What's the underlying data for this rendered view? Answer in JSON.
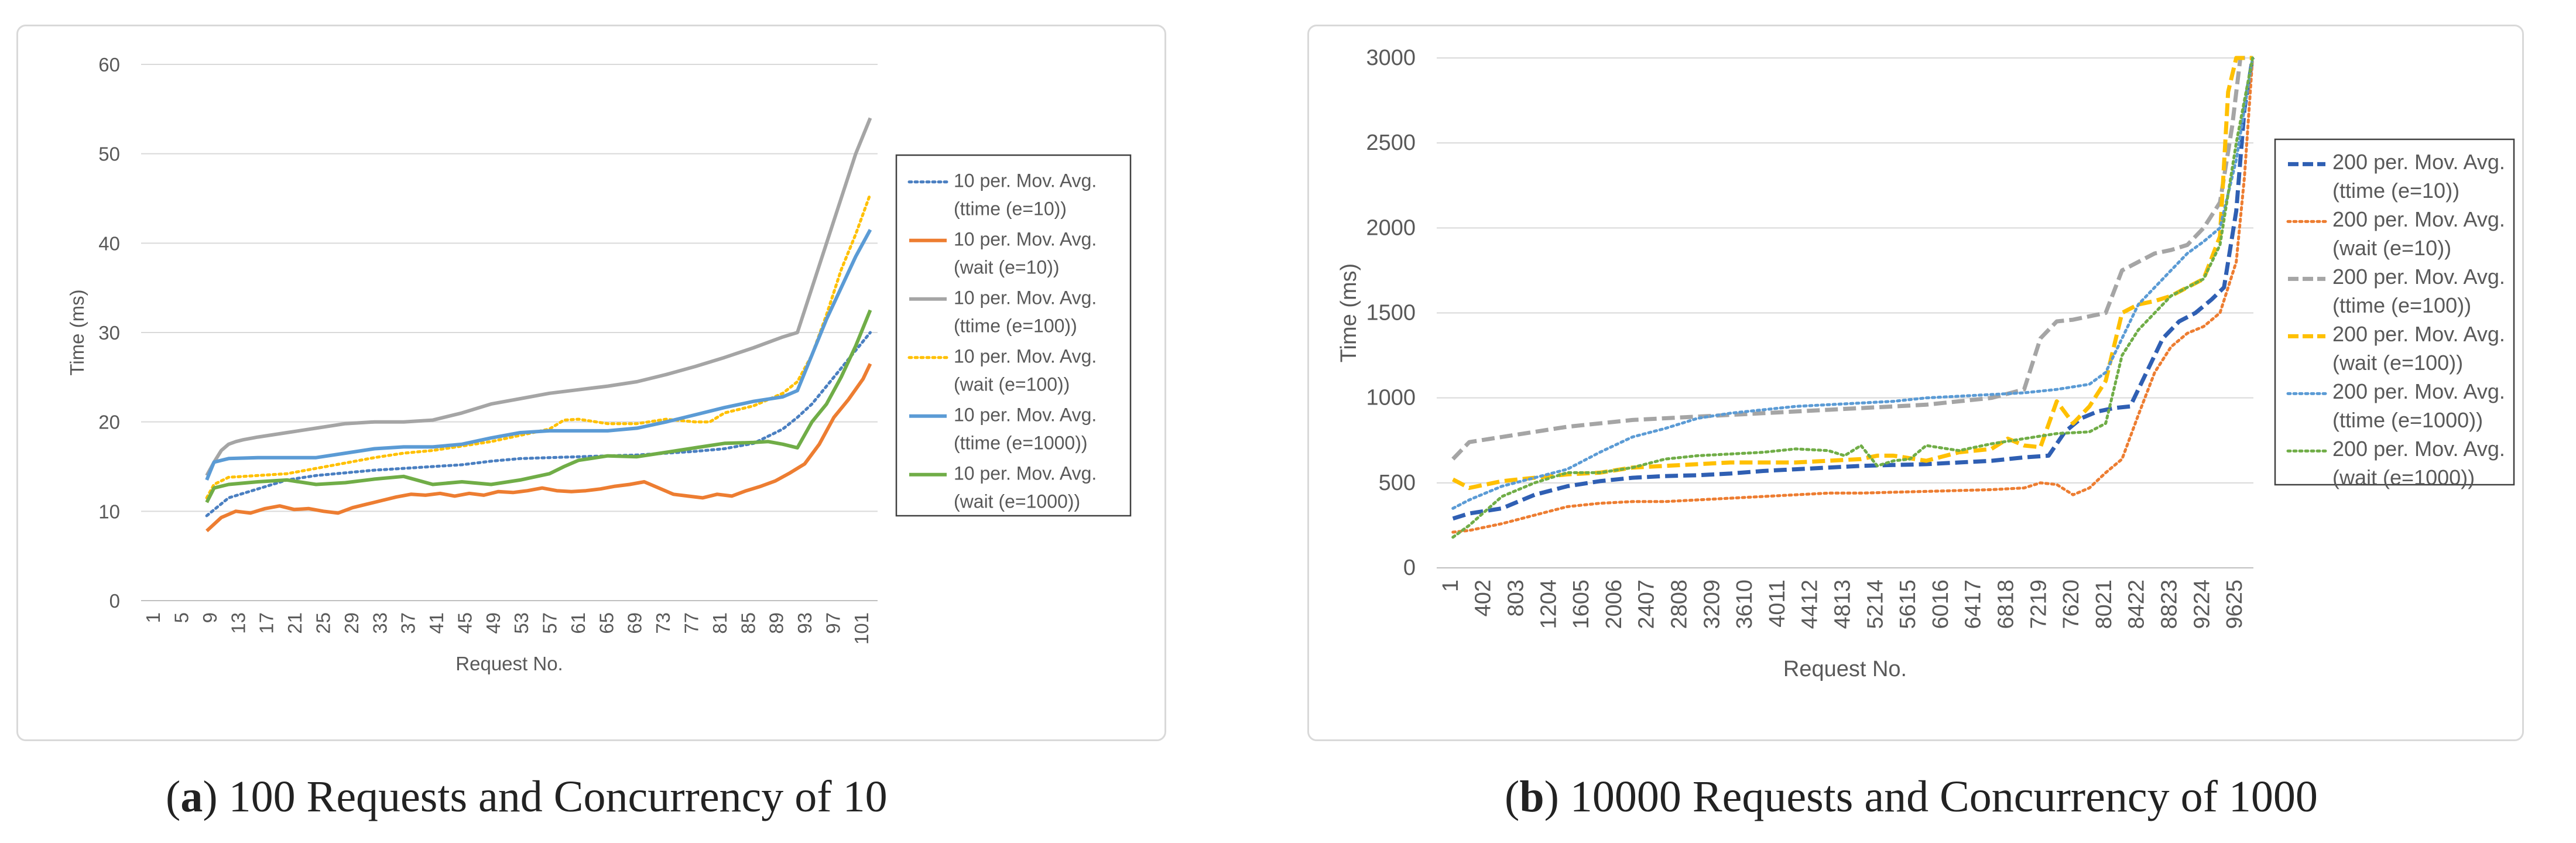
{
  "chart_data": [
    {
      "type": "line",
      "panel_label": "a",
      "caption": "100 Requests and Concurrency of 10",
      "title": "",
      "xlabel": "Request No.",
      "ylabel": "Time (ms)",
      "x_ticks": [
        "1",
        "5",
        "9",
        "13",
        "17",
        "21",
        "25",
        "29",
        "33",
        "37",
        "41",
        "45",
        "49",
        "53",
        "57",
        "61",
        "65",
        "69",
        "73",
        "77",
        "81",
        "85",
        "89",
        "93",
        "97",
        "101"
      ],
      "x_range": [
        1,
        102
      ],
      "ylim": [
        0,
        60
      ],
      "y_ticks": [
        0,
        10,
        20,
        30,
        40,
        50,
        60
      ],
      "grid": true,
      "legend_position": "right",
      "series": [
        {
          "name": "10 per. Mov. Avg. (ttime (e=10))",
          "color": "#4a7fc1",
          "style": "dotted",
          "width": 5,
          "x": [
            10,
            13,
            17,
            21,
            25,
            29,
            33,
            37,
            41,
            45,
            49,
            53,
            57,
            61,
            65,
            69,
            73,
            77,
            81,
            85,
            89,
            91,
            93,
            95,
            97,
            99,
            101
          ],
          "y": [
            9.5,
            11.5,
            12.5,
            13.5,
            14,
            14.3,
            14.6,
            14.8,
            15,
            15.2,
            15.6,
            15.9,
            16,
            16.1,
            16.2,
            16.3,
            16.5,
            16.7,
            17,
            17.6,
            19.2,
            20.5,
            22,
            24,
            26,
            28,
            30
          ]
        },
        {
          "name": "10 per. Mov. Avg. (wait (e=10))",
          "color": "#ed7d31",
          "style": "solid",
          "width": 6,
          "x": [
            10,
            12,
            14,
            16,
            18,
            20,
            22,
            24,
            26,
            28,
            30,
            32,
            34,
            36,
            38,
            40,
            42,
            44,
            46,
            48,
            50,
            52,
            54,
            56,
            58,
            60,
            62,
            64,
            66,
            68,
            70,
            72,
            74,
            76,
            78,
            80,
            82,
            84,
            86,
            88,
            90,
            92,
            94,
            96,
            98,
            100,
            101
          ],
          "y": [
            7.8,
            9.3,
            10,
            9.8,
            10.3,
            10.6,
            10.2,
            10.3,
            10,
            9.8,
            10.4,
            10.8,
            11.2,
            11.6,
            11.9,
            11.8,
            12,
            11.7,
            12,
            11.8,
            12.2,
            12.1,
            12.3,
            12.6,
            12.3,
            12.2,
            12.3,
            12.5,
            12.8,
            13,
            13.3,
            12.6,
            11.9,
            11.7,
            11.5,
            11.9,
            11.7,
            12.3,
            12.8,
            13.4,
            14.3,
            15.3,
            17.5,
            20.5,
            22.5,
            24.8,
            26.5
          ]
        },
        {
          "name": "10 per. Mov. Avg. (ttime (e=100))",
          "color": "#a5a5a5",
          "style": "solid",
          "width": 6,
          "x": [
            10,
            11,
            12,
            13,
            14,
            15,
            17,
            21,
            25,
            29,
            33,
            37,
            41,
            45,
            49,
            53,
            57,
            61,
            65,
            69,
            73,
            77,
            81,
            85,
            89,
            91,
            93,
            95,
            97,
            99,
            101
          ],
          "y": [
            14,
            15.5,
            16.8,
            17.5,
            17.8,
            18,
            18.3,
            18.8,
            19.3,
            19.8,
            20,
            20,
            20.2,
            21,
            22,
            22.6,
            23.2,
            23.6,
            24,
            24.5,
            25.3,
            26.2,
            27.2,
            28.3,
            29.5,
            30,
            35,
            40,
            45,
            50,
            54
          ]
        },
        {
          "name": "10 per. Mov. Avg. (wait (e=100))",
          "color": "#ffc000",
          "style": "dotted",
          "width": 5,
          "x": [
            10,
            11,
            13,
            17,
            21,
            25,
            29,
            33,
            37,
            41,
            45,
            49,
            53,
            57,
            59,
            61,
            65,
            69,
            73,
            77,
            79,
            81,
            85,
            89,
            91,
            93,
            95,
            97,
            99,
            101
          ],
          "y": [
            11.5,
            13,
            13.8,
            14,
            14.2,
            14.8,
            15.4,
            16,
            16.5,
            16.8,
            17.3,
            17.8,
            18.5,
            19.2,
            20.2,
            20.3,
            19.8,
            19.8,
            20.3,
            20,
            20,
            21,
            21.8,
            23.2,
            24.5,
            27.5,
            32,
            37,
            41,
            45.5
          ]
        },
        {
          "name": "10 per. Mov. Avg. (ttime (e=1000))",
          "color": "#5b9bd5",
          "style": "solid",
          "width": 6,
          "x": [
            10,
            11,
            13,
            17,
            21,
            25,
            29,
            33,
            37,
            41,
            45,
            49,
            53,
            57,
            61,
            65,
            69,
            73,
            77,
            81,
            85,
            89,
            91,
            93,
            95,
            97,
            99,
            101
          ],
          "y": [
            13.5,
            15.5,
            15.9,
            16,
            16,
            16,
            16.5,
            17,
            17.2,
            17.2,
            17.5,
            18.2,
            18.8,
            19,
            19,
            19,
            19.3,
            20,
            20.8,
            21.6,
            22.3,
            22.8,
            23.5,
            27.5,
            31.5,
            35,
            38.5,
            41.5
          ]
        },
        {
          "name": "10 per. Mov. Avg. (wait (e=1000))",
          "color": "#70ad47",
          "style": "solid",
          "width": 6,
          "x": [
            10,
            11,
            13,
            17,
            21,
            25,
            29,
            33,
            37,
            41,
            45,
            49,
            53,
            57,
            59,
            61,
            65,
            69,
            73,
            77,
            81,
            85,
            87,
            89,
            91,
            93,
            95,
            97,
            99,
            101
          ],
          "y": [
            11,
            12.6,
            13,
            13.3,
            13.5,
            13,
            13.2,
            13.6,
            13.9,
            13,
            13.3,
            13,
            13.5,
            14.2,
            15,
            15.7,
            16.2,
            16.1,
            16.6,
            17.1,
            17.6,
            17.7,
            17.8,
            17.5,
            17.1,
            20,
            22,
            25,
            28.5,
            32.5
          ]
        }
      ]
    },
    {
      "type": "line",
      "panel_label": "b",
      "caption": "10000 Requests and Concurrency of 1000",
      "title": "",
      "xlabel": "Request No.",
      "ylabel": "Time (ms)",
      "x_ticks": [
        "1",
        "402",
        "803",
        "1204",
        "1605",
        "2006",
        "2407",
        "2808",
        "3209",
        "3610",
        "4011",
        "4412",
        "4813",
        "5214",
        "5615",
        "6016",
        "6417",
        "6818",
        "7219",
        "7620",
        "8021",
        "8422",
        "8823",
        "9224",
        "9625"
      ],
      "x_range": [
        1,
        10010
      ],
      "ylim": [
        0,
        3000
      ],
      "y_ticks": [
        0,
        500,
        1000,
        1500,
        2000,
        2500,
        3000
      ],
      "grid": true,
      "legend_position": "right",
      "series": [
        {
          "name": "200 per. Mov. Avg. (ttime (e=10))",
          "color": "#2f5fb3",
          "style": "dashed",
          "width": 7,
          "x": [
            200,
            400,
            800,
            1200,
            1600,
            2000,
            2400,
            2800,
            3200,
            3600,
            4000,
            4400,
            4800,
            5200,
            5600,
            6000,
            6400,
            6800,
            7200,
            7500,
            7700,
            7900,
            8100,
            8300,
            8500,
            8700,
            8900,
            9100,
            9300,
            9500,
            9650,
            9800,
            9900,
            10000
          ],
          "y": [
            290,
            320,
            350,
            430,
            480,
            510,
            530,
            540,
            545,
            555,
            570,
            580,
            590,
            600,
            605,
            610,
            620,
            630,
            650,
            660,
            800,
            880,
            920,
            940,
            950,
            1150,
            1350,
            1450,
            1500,
            1580,
            1650,
            2100,
            2700,
            3000
          ]
        },
        {
          "name": "200 per. Mov. Avg. (wait (e=10))",
          "color": "#ed7d31",
          "style": "dotted",
          "width": 5,
          "x": [
            200,
            400,
            800,
            1200,
            1600,
            2000,
            2400,
            2800,
            3200,
            3600,
            4000,
            4400,
            4800,
            5200,
            5600,
            6000,
            6400,
            6800,
            7200,
            7400,
            7600,
            7800,
            8000,
            8200,
            8400,
            8600,
            8800,
            9000,
            9200,
            9400,
            9600,
            9800,
            9900,
            10000
          ],
          "y": [
            210,
            220,
            260,
            310,
            360,
            380,
            390,
            390,
            400,
            410,
            420,
            430,
            440,
            440,
            445,
            450,
            455,
            460,
            470,
            500,
            490,
            430,
            470,
            560,
            640,
            900,
            1150,
            1300,
            1380,
            1420,
            1500,
            1800,
            2300,
            3000
          ]
        },
        {
          "name": "200 per. Mov. Avg. (ttime (e=100))",
          "color": "#a5a5a5",
          "style": "dashed",
          "width": 7,
          "x": [
            200,
            400,
            800,
            1200,
            1600,
            2000,
            2400,
            2800,
            3200,
            3600,
            4000,
            4400,
            4800,
            5200,
            5600,
            6000,
            6400,
            6800,
            7200,
            7400,
            7600,
            7800,
            8000,
            8200,
            8400,
            8600,
            8800,
            9000,
            9200,
            9400,
            9600,
            9750,
            9850,
            10000
          ],
          "y": [
            640,
            740,
            770,
            800,
            830,
            850,
            870,
            880,
            890,
            900,
            910,
            920,
            930,
            940,
            950,
            960,
            980,
            1000,
            1050,
            1350,
            1450,
            1460,
            1480,
            1500,
            1750,
            1800,
            1850,
            1870,
            1900,
            2000,
            2150,
            2600,
            3000,
            3000
          ]
        },
        {
          "name": "200 per. Mov. Avg. (wait (e=100))",
          "color": "#ffc000",
          "style": "dashed",
          "width": 7,
          "x": [
            200,
            400,
            800,
            1200,
            1600,
            2000,
            2400,
            2800,
            3200,
            3600,
            4000,
            4400,
            4800,
            5200,
            5400,
            5600,
            6000,
            6400,
            6800,
            7000,
            7200,
            7400,
            7600,
            7800,
            8000,
            8200,
            8400,
            8600,
            8800,
            9000,
            9200,
            9400,
            9600,
            9700,
            9800,
            10000
          ],
          "y": [
            520,
            470,
            510,
            530,
            550,
            560,
            590,
            600,
            610,
            620,
            620,
            620,
            630,
            640,
            660,
            660,
            630,
            680,
            700,
            760,
            720,
            710,
            980,
            850,
            950,
            1100,
            1500,
            1550,
            1570,
            1600,
            1650,
            1700,
            1950,
            2800,
            3000,
            3000
          ]
        },
        {
          "name": "200 per. Mov. Avg. (ttime (e=1000))",
          "color": "#5b9bd5",
          "style": "dotted",
          "width": 5,
          "x": [
            200,
            400,
            800,
            1200,
            1600,
            2000,
            2400,
            2800,
            3200,
            3600,
            4000,
            4400,
            4800,
            5200,
            5600,
            6000,
            6400,
            6800,
            7200,
            7600,
            8000,
            8200,
            8400,
            8600,
            8800,
            9000,
            9200,
            9400,
            9600,
            9800,
            10000
          ],
          "y": [
            350,
            400,
            480,
            530,
            580,
            680,
            770,
            820,
            880,
            910,
            930,
            950,
            960,
            970,
            980,
            1000,
            1010,
            1020,
            1030,
            1050,
            1080,
            1150,
            1350,
            1550,
            1650,
            1750,
            1850,
            1920,
            2000,
            2400,
            3000
          ]
        },
        {
          "name": "200 per. Mov. Avg. (wait (e=1000))",
          "color": "#70ad47",
          "style": "dotted",
          "width": 5,
          "x": [
            200,
            400,
            800,
            1200,
            1600,
            2000,
            2400,
            2800,
            3200,
            3600,
            4000,
            4400,
            4800,
            5000,
            5200,
            5400,
            5600,
            5800,
            6000,
            6400,
            6800,
            7200,
            7600,
            8000,
            8200,
            8400,
            8600,
            8800,
            9000,
            9200,
            9400,
            9600,
            9800,
            10000
          ],
          "y": [
            180,
            250,
            420,
            500,
            560,
            560,
            590,
            640,
            660,
            670,
            680,
            700,
            690,
            660,
            720,
            600,
            630,
            640,
            720,
            690,
            730,
            760,
            790,
            800,
            850,
            1250,
            1400,
            1500,
            1600,
            1650,
            1700,
            1900,
            2500,
            3000
          ]
        }
      ]
    }
  ]
}
